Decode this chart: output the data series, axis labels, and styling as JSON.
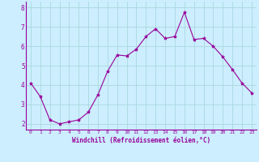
{
  "x": [
    0,
    1,
    2,
    3,
    4,
    5,
    6,
    7,
    8,
    9,
    10,
    11,
    12,
    13,
    14,
    15,
    16,
    17,
    18,
    19,
    20,
    21,
    22,
    23
  ],
  "y": [
    4.1,
    3.4,
    2.2,
    2.0,
    2.1,
    2.2,
    2.6,
    3.5,
    4.7,
    5.55,
    5.5,
    5.85,
    6.5,
    6.9,
    6.4,
    6.5,
    7.75,
    6.35,
    6.4,
    6.0,
    5.45,
    4.8,
    4.1,
    3.6
  ],
  "line_color": "#990099",
  "marker": "*",
  "marker_size": 3,
  "background_color": "#cceeff",
  "grid_color": "#aad8dd",
  "xlabel": "Windchill (Refroidissement éolien,°C)",
  "xlabel_color": "#990099",
  "tick_color": "#990099",
  "ylim": [
    1.7,
    8.3
  ],
  "xlim": [
    -0.5,
    23.5
  ],
  "yticks": [
    2,
    3,
    4,
    5,
    6,
    7,
    8
  ],
  "xticks": [
    0,
    1,
    2,
    3,
    4,
    5,
    6,
    7,
    8,
    9,
    10,
    11,
    12,
    13,
    14,
    15,
    16,
    17,
    18,
    19,
    20,
    21,
    22,
    23
  ]
}
